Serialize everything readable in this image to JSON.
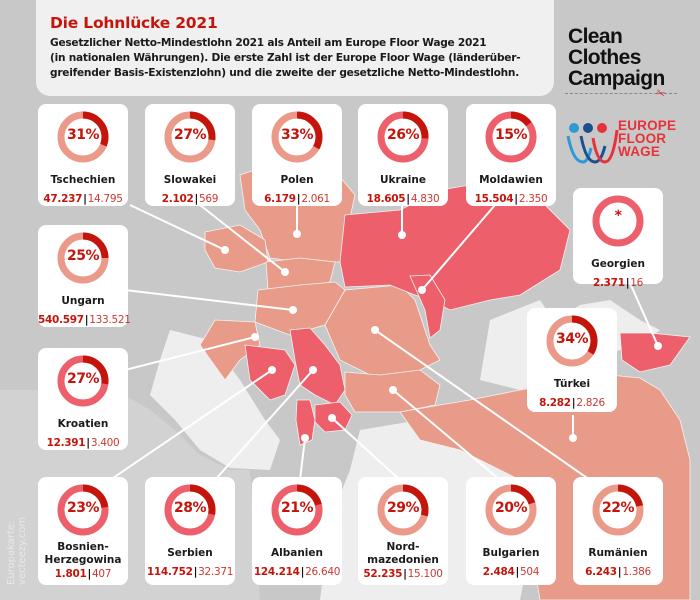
{
  "header": {
    "title": "Die Lohnlücke 2021",
    "subtitle_lines": [
      "Gesetzlicher Netto-Mindestlohn 2021 als Anteil am Europe Floor Wage 2021",
      "(in nationalen Währungen). Die erste Zahl ist der Europe Floor Wage (länderüber-",
      "greifender Basis-Existenzlohn) und die zweite der gesetzliche Netto-Mindestlohn."
    ]
  },
  "logos": {
    "ccc_lines": [
      "Clean",
      "Clothes",
      "Campaign"
    ],
    "efw_lines": [
      "EUROPE",
      "FLOOR",
      "WAGE"
    ]
  },
  "credit_lines": [
    "Europakarte:",
    "vecteezy.com"
  ],
  "colors": {
    "accent_red": "#c4150c",
    "ring_light": "#eb9a8a",
    "ring_pink": "#ec5f6b",
    "map_light": "#e99b89",
    "map_dark": "#ec5f6b",
    "map_gray": "#c8c8c8",
    "map_pale": "#eeeeee"
  },
  "countries": [
    {
      "name": "Tschechien",
      "pct_label": "31%",
      "pct": 31,
      "efw": "47.237",
      "min": "14.795",
      "tone": "light"
    },
    {
      "name": "Slowakei",
      "pct_label": "27%",
      "pct": 27,
      "efw": "2.102",
      "min": "569",
      "tone": "light"
    },
    {
      "name": "Polen",
      "pct_label": "33%",
      "pct": 33,
      "efw": "6.179",
      "min": "2.061",
      "tone": "light"
    },
    {
      "name": "Ukraine",
      "pct_label": "26%",
      "pct": 26,
      "efw": "18.605",
      "min": "4.830",
      "tone": "pink"
    },
    {
      "name": "Moldawien",
      "pct_label": "15%",
      "pct": 15,
      "efw": "15.504",
      "min": "2.350",
      "tone": "pink"
    },
    {
      "name": "Georgien",
      "pct_label": "*",
      "pct": 0,
      "efw": "2.371",
      "min": "16",
      "tone": "pink"
    },
    {
      "name": "Ungarn",
      "pct_label": "25%",
      "pct": 25,
      "efw": "540.597",
      "min": "133.521",
      "tone": "light"
    },
    {
      "name": "Kroatien",
      "pct_label": "27%",
      "pct": 27,
      "efw": "12.391",
      "min": "3.400",
      "tone": "pink"
    },
    {
      "name": "Türkei",
      "pct_label": "34%",
      "pct": 34,
      "efw": "8.282",
      "min": "2.826",
      "tone": "light"
    },
    {
      "name": "Bosnien-Herzegowina",
      "name_lines": [
        "Bosnien-",
        "Herzegowina"
      ],
      "pct_label": "23%",
      "pct": 23,
      "efw": "1.801",
      "min": "407",
      "tone": "pink"
    },
    {
      "name": "Serbien",
      "pct_label": "28%",
      "pct": 28,
      "efw": "114.752",
      "min": "32.371",
      "tone": "pink"
    },
    {
      "name": "Albanien",
      "pct_label": "21%",
      "pct": 21,
      "efw": "124.214",
      "min": "26.640",
      "tone": "pink"
    },
    {
      "name": "Nordmazedonien",
      "name_lines": [
        "Nord-",
        "mazedonien"
      ],
      "pct_label": "29%",
      "pct": 29,
      "efw": "52.235",
      "min": "15.100",
      "tone": "light"
    },
    {
      "name": "Bulgarien",
      "pct_label": "20%",
      "pct": 20,
      "efw": "2.484",
      "min": "504",
      "tone": "light"
    },
    {
      "name": "Rumänien",
      "pct_label": "22%",
      "pct": 22,
      "efw": "6.243",
      "min": "1.386",
      "tone": "light"
    }
  ]
}
